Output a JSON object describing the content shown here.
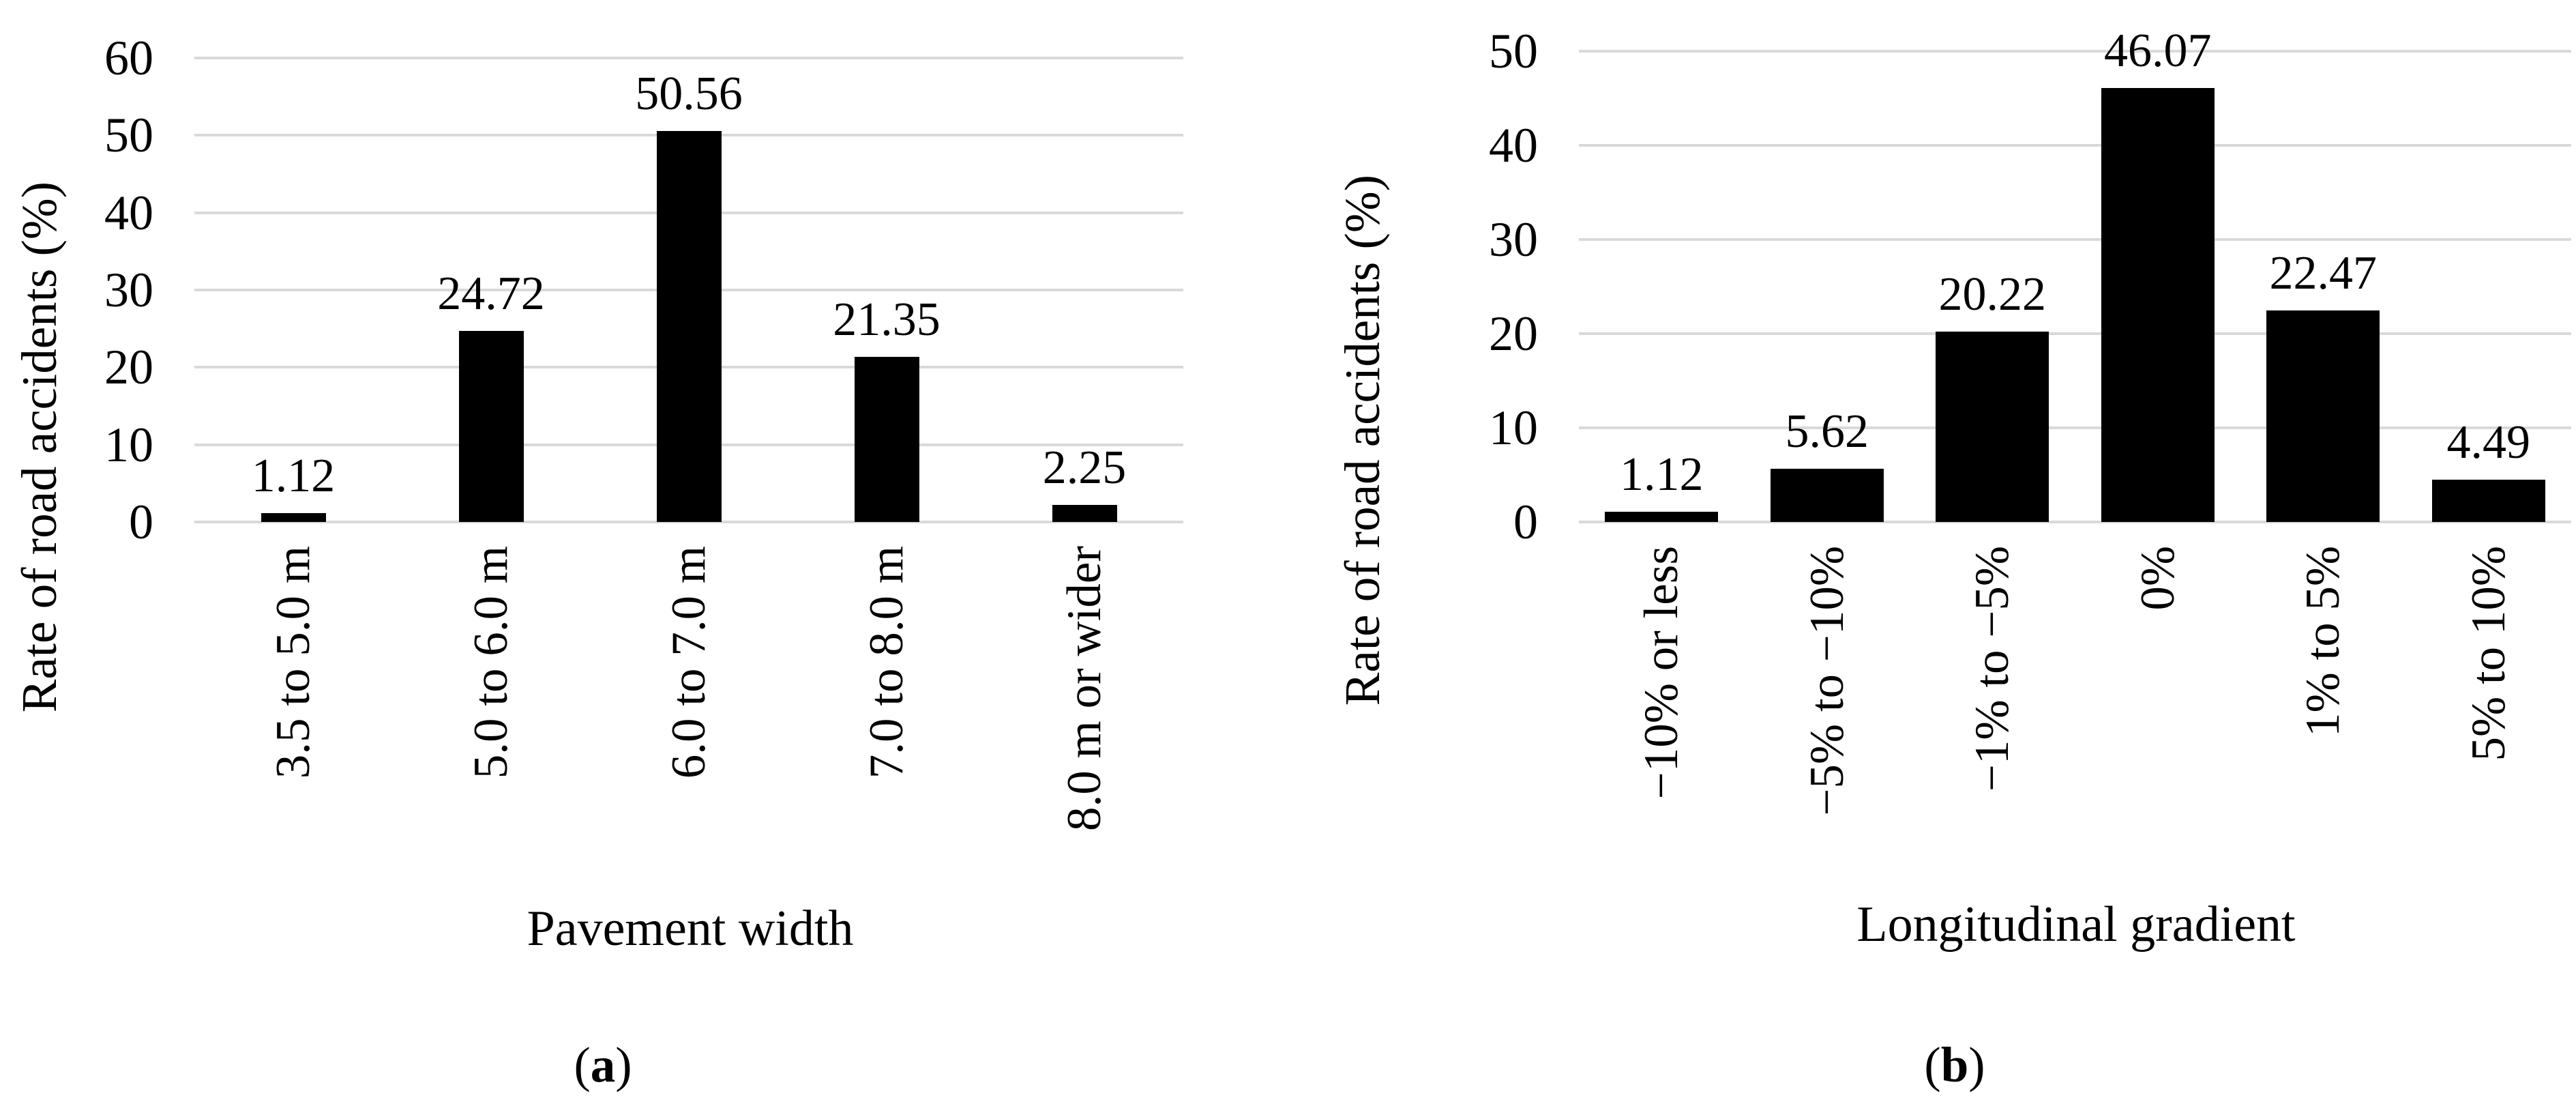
{
  "figure": {
    "caption_open": "(",
    "caption_close": ")"
  },
  "chart_data": [
    {
      "type": "bar",
      "panel": "a",
      "caption_letter": "a",
      "categories": [
        "3.5 to 5.0 m",
        "5.0 to 6.0 m",
        "6.0 to 7.0 m",
        "7.0 to 8.0 m",
        "8.0 m or wider"
      ],
      "values": [
        1.12,
        24.72,
        50.56,
        21.35,
        2.25
      ],
      "value_labels": [
        "1.12",
        "24.72",
        "50.56",
        "21.35",
        "2.25"
      ],
      "xlabel": "Pavement width",
      "ylabel": "Rate of road accidents (%)",
      "ylim": [
        0,
        60
      ],
      "yticks": [
        0,
        10,
        20,
        30,
        40,
        50,
        60
      ],
      "grid": true,
      "legend": "none",
      "bar_color": "#000000",
      "gridline_color": "#d9d9d9"
    },
    {
      "type": "bar",
      "panel": "b",
      "caption_letter": "b",
      "categories": [
        "−10% or less",
        "−5% to −10%",
        "−1% to −5%",
        "0%",
        "1% to 5%",
        "5% to 10%"
      ],
      "values": [
        1.12,
        5.62,
        20.22,
        46.07,
        22.47,
        4.49
      ],
      "value_labels": [
        "1.12",
        "5.62",
        "20.22",
        "46.07",
        "22.47",
        "4.49"
      ],
      "xlabel": "Longitudinal gradient",
      "ylabel": "Rate of road accidents (%)",
      "ylim": [
        0,
        50
      ],
      "yticks": [
        0,
        10,
        20,
        30,
        40,
        50
      ],
      "grid": true,
      "legend": "none",
      "bar_color": "#000000",
      "gridline_color": "#d9d9d9"
    }
  ]
}
